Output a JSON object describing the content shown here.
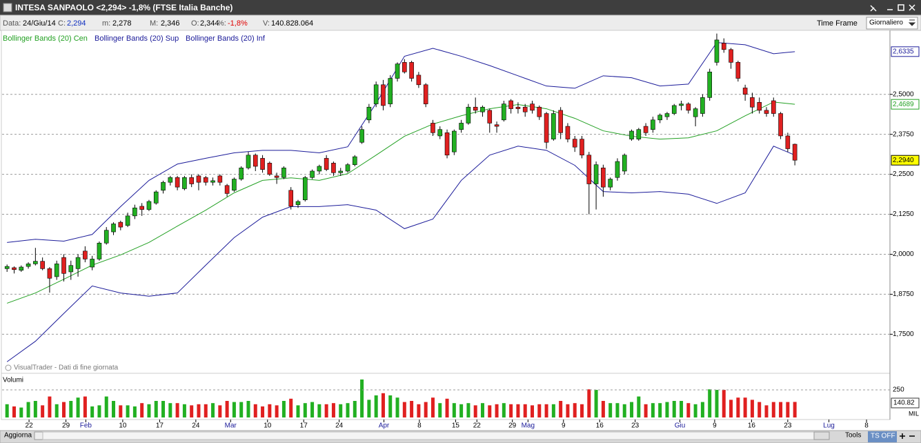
{
  "window": {
    "title": "INTESA SANPAOLO <2,294> -1,8%  (FTSE Italia Banche)",
    "info": [
      {
        "label": "Data:",
        "value": "24/Giu/14"
      },
      {
        "label": "C:",
        "value": "2,294"
      },
      {
        "label": "m:",
        "value": "2,278"
      },
      {
        "label": "M:",
        "value": "2,346"
      },
      {
        "label": "O:",
        "value": "2,344"
      },
      {
        "label": "%:",
        "value": "-1,8%"
      },
      {
        "label": "V:",
        "value": "140.828.064"
      }
    ],
    "time_frame_label": "Time Frame",
    "time_frame": "Giornaliero",
    "watermark": "VisualTrader - Dati di fine giornata",
    "refresh": "Aggiorna",
    "tools": "Tools",
    "ts": "TS OFF",
    "volume_unit": "MIL"
  },
  "chart_data": [
    {
      "type": "candlestick",
      "up_color": "#22b022",
      "down_color": "#e02020",
      "grid": true,
      "last_label": "2,2940",
      "last_color": "#ffff00",
      "xlim": [
        -0.7,
        124.4
      ],
      "ylim": [
        1.63,
        2.7
      ],
      "yticks": [
        {
          "value": 1.75,
          "label": "1,7500"
        },
        {
          "value": 1.875,
          "label": "1,8750"
        },
        {
          "value": 2.0,
          "label": "2,0000"
        },
        {
          "value": 2.125,
          "label": "2,1250"
        },
        {
          "value": 2.25,
          "label": "2,2500"
        },
        {
          "value": 2.375,
          "label": "2,3750"
        },
        {
          "value": 2.5,
          "label": "2,5000"
        }
      ],
      "open": [
        1.955,
        1.958,
        1.95,
        1.962,
        1.97,
        1.978,
        1.955,
        1.93,
        1.99,
        1.945,
        1.955,
        2.01,
        1.96,
        1.985,
        2.035,
        2.07,
        2.1,
        2.09,
        2.12,
        2.15,
        2.14,
        2.16,
        2.2,
        2.225,
        2.24,
        2.205,
        2.24,
        2.245,
        2.24,
        2.225,
        2.245,
        2.215,
        2.2,
        2.235,
        2.27,
        2.31,
        2.3,
        2.285,
        2.245,
        2.24,
        2.2,
        2.155,
        2.17,
        2.24,
        2.26,
        2.3,
        2.285,
        2.255,
        2.26,
        2.28,
        2.35,
        2.42,
        2.47,
        2.53,
        2.47,
        2.55,
        2.6,
        2.6,
        2.56,
        2.53,
        2.41,
        2.37,
        2.38,
        2.32,
        2.39,
        2.41,
        2.46,
        2.445,
        2.45,
        2.405,
        2.42,
        2.48,
        2.46,
        2.46,
        2.47,
        2.46,
        2.44,
        2.36,
        2.45,
        2.4,
        2.36,
        2.36,
        2.31,
        2.22,
        2.27,
        2.21,
        2.24,
        2.26,
        2.36,
        2.36,
        2.4,
        2.39,
        2.42,
        2.43,
        2.44,
        2.465,
        2.47,
        2.43,
        2.44,
        2.49,
        2.6,
        2.66,
        2.64,
        2.6,
        2.52,
        2.49,
        2.475,
        2.45,
        2.48,
        2.44,
        2.37,
        2.344
      ],
      "high": [
        1.968,
        1.962,
        1.965,
        1.975,
        2.02,
        1.99,
        1.96,
        1.98,
        2.0,
        1.98,
        2.0,
        2.025,
        1.995,
        2.04,
        2.085,
        2.1,
        2.105,
        2.13,
        2.155,
        2.16,
        2.17,
        2.2,
        2.23,
        2.245,
        2.245,
        2.245,
        2.25,
        2.25,
        2.245,
        2.24,
        2.25,
        2.22,
        2.24,
        2.275,
        2.32,
        2.315,
        2.31,
        2.29,
        2.255,
        2.275,
        2.21,
        2.17,
        2.245,
        2.265,
        2.28,
        2.31,
        2.29,
        2.27,
        2.285,
        2.31,
        2.4,
        2.47,
        2.54,
        2.545,
        2.56,
        2.6,
        2.61,
        2.605,
        2.57,
        2.535,
        2.42,
        2.4,
        2.39,
        2.39,
        2.42,
        2.47,
        2.49,
        2.465,
        2.455,
        2.415,
        2.48,
        2.485,
        2.475,
        2.47,
        2.48,
        2.465,
        2.445,
        2.45,
        2.46,
        2.41,
        2.37,
        2.37,
        2.32,
        2.29,
        2.28,
        2.24,
        2.3,
        2.315,
        2.39,
        2.395,
        2.41,
        2.43,
        2.44,
        2.445,
        2.47,
        2.48,
        2.475,
        2.46,
        2.5,
        2.58,
        2.69,
        2.675,
        2.645,
        2.605,
        2.53,
        2.505,
        2.49,
        2.46,
        2.49,
        2.445,
        2.38,
        2.346
      ],
      "low": [
        1.945,
        1.94,
        1.945,
        1.955,
        1.965,
        1.95,
        1.88,
        1.92,
        1.915,
        1.92,
        1.93,
        1.975,
        1.95,
        1.98,
        2.03,
        2.06,
        2.075,
        2.085,
        2.11,
        2.12,
        2.135,
        2.155,
        2.19,
        2.215,
        2.2,
        2.2,
        2.21,
        2.2,
        2.215,
        2.215,
        2.215,
        2.18,
        2.195,
        2.23,
        2.265,
        2.26,
        2.255,
        2.245,
        2.22,
        2.235,
        2.14,
        2.145,
        2.165,
        2.235,
        2.25,
        2.26,
        2.245,
        2.245,
        2.255,
        2.275,
        2.345,
        2.41,
        2.46,
        2.45,
        2.46,
        2.54,
        2.565,
        2.54,
        2.52,
        2.46,
        2.37,
        2.36,
        2.3,
        2.31,
        2.38,
        2.405,
        2.44,
        2.43,
        2.38,
        2.38,
        2.415,
        2.44,
        2.44,
        2.43,
        2.44,
        2.42,
        2.33,
        2.355,
        2.36,
        2.35,
        2.32,
        2.3,
        2.125,
        2.14,
        2.18,
        2.2,
        2.23,
        2.25,
        2.355,
        2.355,
        2.37,
        2.38,
        2.41,
        2.42,
        2.435,
        2.45,
        2.44,
        2.4,
        2.43,
        2.48,
        2.59,
        2.63,
        2.58,
        2.54,
        2.48,
        2.44,
        2.44,
        2.43,
        2.43,
        2.36,
        2.32,
        2.278
      ],
      "close": [
        1.962,
        1.952,
        1.96,
        1.97,
        1.978,
        1.955,
        1.925,
        1.97,
        1.94,
        1.965,
        1.99,
        1.985,
        1.985,
        2.035,
        2.075,
        2.095,
        2.085,
        2.12,
        2.145,
        2.14,
        2.165,
        2.195,
        2.225,
        2.24,
        2.21,
        2.24,
        2.22,
        2.225,
        2.225,
        2.23,
        2.225,
        2.19,
        2.235,
        2.27,
        2.31,
        2.275,
        2.265,
        2.25,
        2.24,
        2.27,
        2.15,
        2.165,
        2.24,
        2.26,
        2.275,
        2.265,
        2.255,
        2.26,
        2.28,
        2.305,
        2.39,
        2.46,
        2.53,
        2.465,
        2.55,
        2.595,
        2.57,
        2.55,
        2.53,
        2.47,
        2.38,
        2.39,
        2.31,
        2.385,
        2.41,
        2.46,
        2.45,
        2.46,
        2.41,
        2.4,
        2.47,
        2.455,
        2.455,
        2.445,
        2.45,
        2.43,
        2.35,
        2.44,
        2.38,
        2.36,
        2.335,
        2.31,
        2.22,
        2.28,
        2.21,
        2.235,
        2.29,
        2.31,
        2.385,
        2.39,
        2.38,
        2.42,
        2.435,
        2.44,
        2.465,
        2.47,
        2.45,
        2.455,
        2.49,
        2.57,
        2.67,
        2.64,
        2.6,
        2.55,
        2.5,
        2.46,
        2.45,
        2.44,
        2.44,
        2.37,
        2.33,
        2.294
      ],
      "bands_x": [
        0,
        4,
        8,
        12,
        16,
        20,
        24,
        28,
        32,
        36,
        40,
        44,
        48,
        52,
        56,
        60,
        64,
        68,
        72,
        76,
        80,
        84,
        88,
        92,
        96,
        100,
        104,
        108,
        111
      ],
      "bands": [
        {
          "name": "Bollinger Bands (20) Cen",
          "color": "#22a022",
          "last_label": "2,4689",
          "values": [
            1.847,
            1.879,
            1.922,
            1.966,
            1.998,
            2.037,
            2.088,
            2.138,
            2.192,
            2.231,
            2.239,
            2.231,
            2.252,
            2.31,
            2.369,
            2.407,
            2.433,
            2.455,
            2.468,
            2.455,
            2.425,
            2.386,
            2.369,
            2.36,
            2.364,
            2.386,
            2.433,
            2.476,
            2.4689
          ]
        },
        {
          "name": "Bollinger Bands (20) Sup",
          "color": "#1a1a99",
          "last_label": "2,6335",
          "values": [
            2.037,
            2.047,
            2.041,
            2.062,
            2.149,
            2.231,
            2.282,
            2.3,
            2.317,
            2.325,
            2.325,
            2.317,
            2.336,
            2.472,
            2.619,
            2.644,
            2.619,
            2.59,
            2.558,
            2.526,
            2.519,
            2.558,
            2.552,
            2.526,
            2.532,
            2.662,
            2.655,
            2.627,
            2.6335
          ]
        },
        {
          "name": "Bollinger Bands (20) Inf",
          "color": "#1a1a99",
          "values": [
            1.664,
            1.728,
            1.815,
            1.901,
            1.879,
            1.869,
            1.879,
            1.966,
            2.052,
            2.116,
            2.149,
            2.149,
            2.155,
            2.138,
            2.08,
            2.11,
            2.231,
            2.31,
            2.338,
            2.325,
            2.278,
            2.196,
            2.192,
            2.196,
            2.188,
            2.159,
            2.192,
            2.338,
            2.31
          ]
        }
      ]
    },
    {
      "type": "bar",
      "title": "Volumi",
      "last_label": "140.82",
      "ylim": [
        0,
        400
      ],
      "yticks": [
        250
      ],
      "xlim": [
        -0.7,
        124.4
      ],
      "xticks": [
        {
          "value": 3.1,
          "label": "22"
        },
        {
          "value": 8.3,
          "label": "29"
        },
        {
          "value": 11.1,
          "label": "Feb"
        },
        {
          "value": 16.3,
          "label": "10"
        },
        {
          "value": 21.5,
          "label": "17"
        },
        {
          "value": 26.6,
          "label": "24"
        },
        {
          "value": 31.5,
          "label": "Mar"
        },
        {
          "value": 36.7,
          "label": "10"
        },
        {
          "value": 41.8,
          "label": "17"
        },
        {
          "value": 46.8,
          "label": "24"
        },
        {
          "value": 53.1,
          "label": "Apr"
        },
        {
          "value": 58.1,
          "label": "8"
        },
        {
          "value": 63.2,
          "label": "15"
        },
        {
          "value": 66.2,
          "label": "22"
        },
        {
          "value": 71.2,
          "label": "29"
        },
        {
          "value": 73.4,
          "label": "Mag"
        },
        {
          "value": 78.4,
          "label": "9"
        },
        {
          "value": 83.5,
          "label": "16"
        },
        {
          "value": 88.5,
          "label": "23"
        },
        {
          "value": 94.8,
          "label": "Giu"
        },
        {
          "value": 99.7,
          "label": "9"
        },
        {
          "value": 104.9,
          "label": "16"
        },
        {
          "value": 110.0,
          "label": "23"
        },
        {
          "value": 115.8,
          "label": "Lug"
        },
        {
          "value": 121.1,
          "label": "8"
        }
      ],
      "values": [
        120,
        100,
        90,
        140,
        150,
        110,
        190,
        120,
        140,
        150,
        180,
        190,
        100,
        110,
        190,
        150,
        110,
        110,
        100,
        130,
        120,
        150,
        150,
        130,
        130,
        120,
        110,
        120,
        120,
        130,
        110,
        150,
        140,
        140,
        150,
        120,
        100,
        120,
        110,
        150,
        170,
        110,
        130,
        140,
        120,
        120,
        130,
        120,
        130,
        150,
        344,
        160,
        200,
        220,
        200,
        180,
        140,
        150,
        120,
        140,
        180,
        130,
        170,
        130,
        120,
        130,
        110,
        130,
        110,
        120,
        130,
        120,
        120,
        120,
        110,
        120,
        120,
        120,
        150,
        120,
        130,
        120,
        255,
        250,
        150,
        130,
        130,
        120,
        140,
        190,
        120,
        130,
        130,
        140,
        150,
        150,
        130,
        120,
        140,
        255,
        250,
        250,
        160,
        180,
        180,
        160,
        140,
        110,
        140,
        140,
        140,
        140.82
      ]
    }
  ]
}
